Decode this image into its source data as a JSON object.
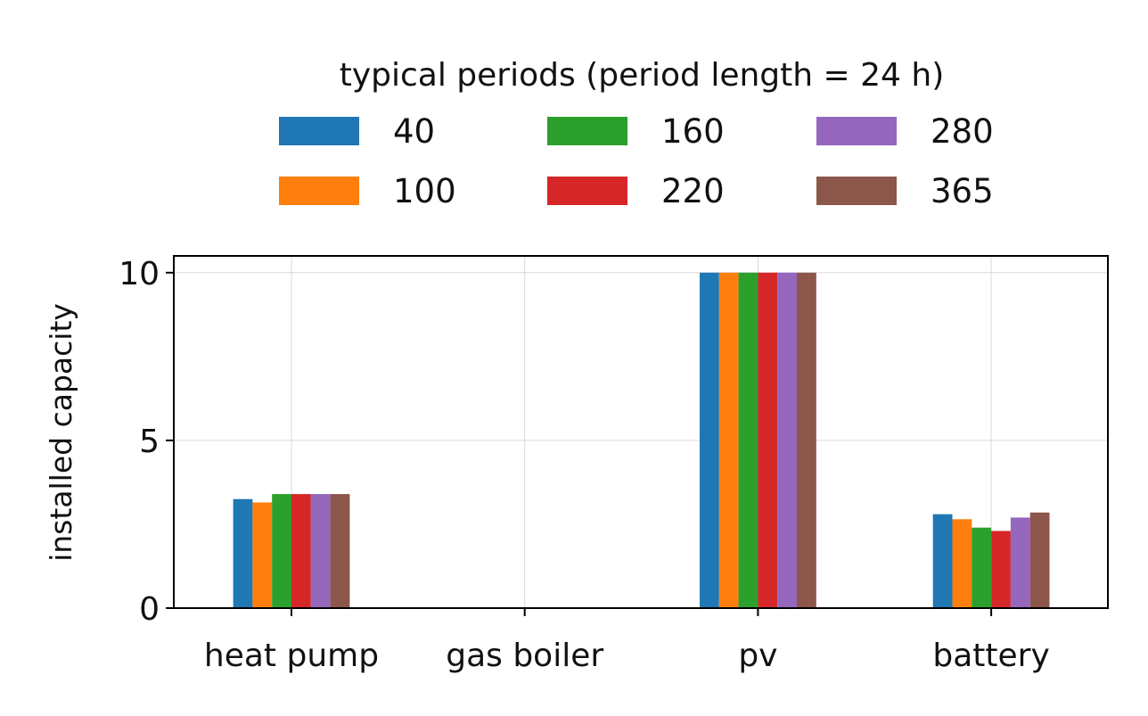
{
  "chart_data": {
    "type": "bar",
    "title": "",
    "xlabel": "",
    "ylabel": "installed capacity",
    "categories": [
      "heat pump",
      "gas boiler",
      "pv",
      "battery"
    ],
    "ylim": [
      0,
      10.5
    ],
    "yticks": [
      0,
      5,
      10
    ],
    "grid": true,
    "legend": {
      "title": "typical periods (period length = 24 h)",
      "placement": "top-center, above axes",
      "columns": 3
    },
    "series": [
      {
        "name": "40",
        "color": "#1f77b4",
        "values": [
          3.25,
          0,
          10,
          2.8
        ]
      },
      {
        "name": "100",
        "color": "#ff7f0e",
        "values": [
          3.15,
          0,
          10,
          2.65
        ]
      },
      {
        "name": "160",
        "color": "#2ca02c",
        "values": [
          3.4,
          0,
          10,
          2.4
        ]
      },
      {
        "name": "220",
        "color": "#d62728",
        "values": [
          3.4,
          0,
          10,
          2.3
        ]
      },
      {
        "name": "280",
        "color": "#9467bd",
        "values": [
          3.4,
          0,
          10,
          2.7
        ]
      },
      {
        "name": "365",
        "color": "#8c564b",
        "values": [
          3.4,
          0,
          10,
          2.85
        ]
      }
    ]
  }
}
